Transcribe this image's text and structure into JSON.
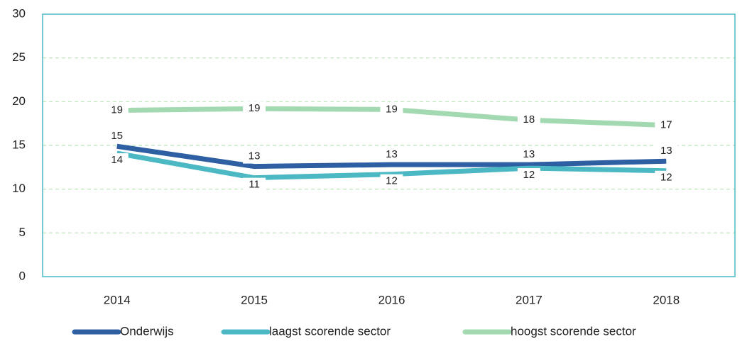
{
  "chart_data": {
    "type": "line",
    "categories": [
      "2014",
      "2015",
      "2016",
      "2017",
      "2018"
    ],
    "series": [
      {
        "name": "Onderwijs",
        "color": "#2e5fa3",
        "values": [
          14.9,
          12.6,
          12.8,
          12.8,
          13.2
        ],
        "value_labels": [
          "15",
          "13",
          "13",
          "13",
          "13"
        ]
      },
      {
        "name": "laagst scorende sector",
        "color": "#4bb8c4",
        "values": [
          14.1,
          11.3,
          11.7,
          12.4,
          12.1
        ],
        "value_labels": [
          "14",
          "11",
          "12",
          "12",
          "12"
        ]
      },
      {
        "name": "hoogst scorende sector",
        "color": "#a3d9b1",
        "values": [
          19.0,
          19.2,
          19.1,
          17.9,
          17.3
        ],
        "value_labels": [
          "19",
          "19",
          "19",
          "18",
          "17"
        ]
      }
    ],
    "ylim": [
      0,
      30
    ],
    "yticks": [
      0,
      5,
      10,
      15,
      20,
      25,
      30
    ],
    "grid": true,
    "legend": "bottom"
  }
}
